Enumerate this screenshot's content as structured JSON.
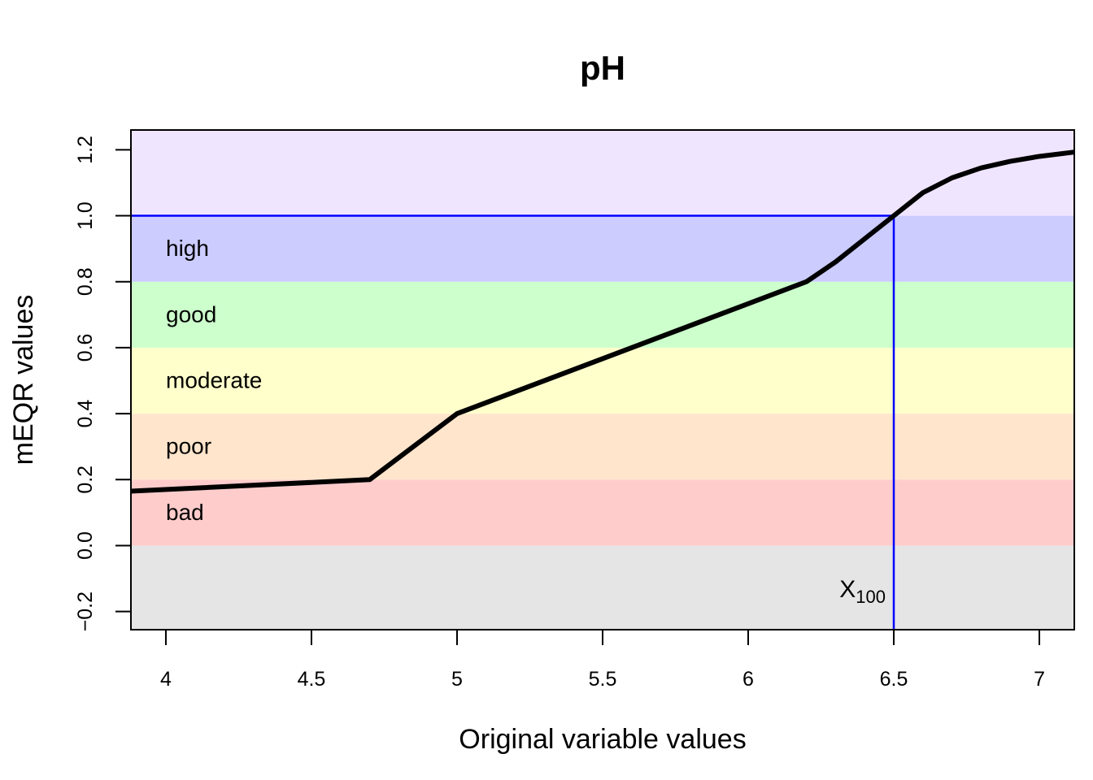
{
  "chart_data": {
    "type": "line",
    "title": "pH",
    "xlabel": "Original variable values",
    "ylabel": "mEQR values",
    "xlim": [
      3.88,
      7.12
    ],
    "ylim": [
      -0.255,
      1.26
    ],
    "x_ticks": [
      4,
      4.5,
      5,
      5.5,
      6,
      6.5,
      7
    ],
    "x_tick_labels": [
      "4",
      "4.5",
      "5",
      "5.5",
      "6",
      "6.5",
      "7"
    ],
    "y_ticks": [
      -0.2,
      0.0,
      0.2,
      0.4,
      0.6,
      0.8,
      1.0,
      1.2
    ],
    "y_tick_labels": [
      "−0.2",
      "0.0",
      "0.2",
      "0.4",
      "0.6",
      "0.8",
      "1.0",
      "1.2"
    ],
    "grid": false,
    "bands": [
      {
        "label": "",
        "from": -0.255,
        "to": 0.0,
        "color": "#e5e5e5"
      },
      {
        "label": "bad",
        "from": 0.0,
        "to": 0.2,
        "color": "#ffcccc"
      },
      {
        "label": "poor",
        "from": 0.2,
        "to": 0.4,
        "color": "#ffe5cc"
      },
      {
        "label": "moderate",
        "from": 0.4,
        "to": 0.6,
        "color": "#ffffcc"
      },
      {
        "label": "good",
        "from": 0.6,
        "to": 0.8,
        "color": "#ccffcc"
      },
      {
        "label": "high",
        "from": 0.8,
        "to": 1.0,
        "color": "#ccccff"
      },
      {
        "label": "",
        "from": 1.0,
        "to": 1.26,
        "color": "#f0e5ff"
      }
    ],
    "series": [
      {
        "color": "#000000",
        "x": [
          3.88,
          4.7,
          5.0,
          6.2,
          6.3,
          6.4,
          6.5,
          6.6,
          6.7,
          6.8,
          6.9,
          7.0,
          7.12
        ],
        "y": [
          0.165,
          0.2,
          0.4,
          0.8,
          0.86,
          0.93,
          1.0,
          1.07,
          1.115,
          1.145,
          1.165,
          1.18,
          1.193
        ]
      }
    ],
    "reference": {
      "x": 6.5,
      "y": 1.0,
      "color": "#0000ff",
      "label_main": "X",
      "label_sub": "100"
    }
  }
}
